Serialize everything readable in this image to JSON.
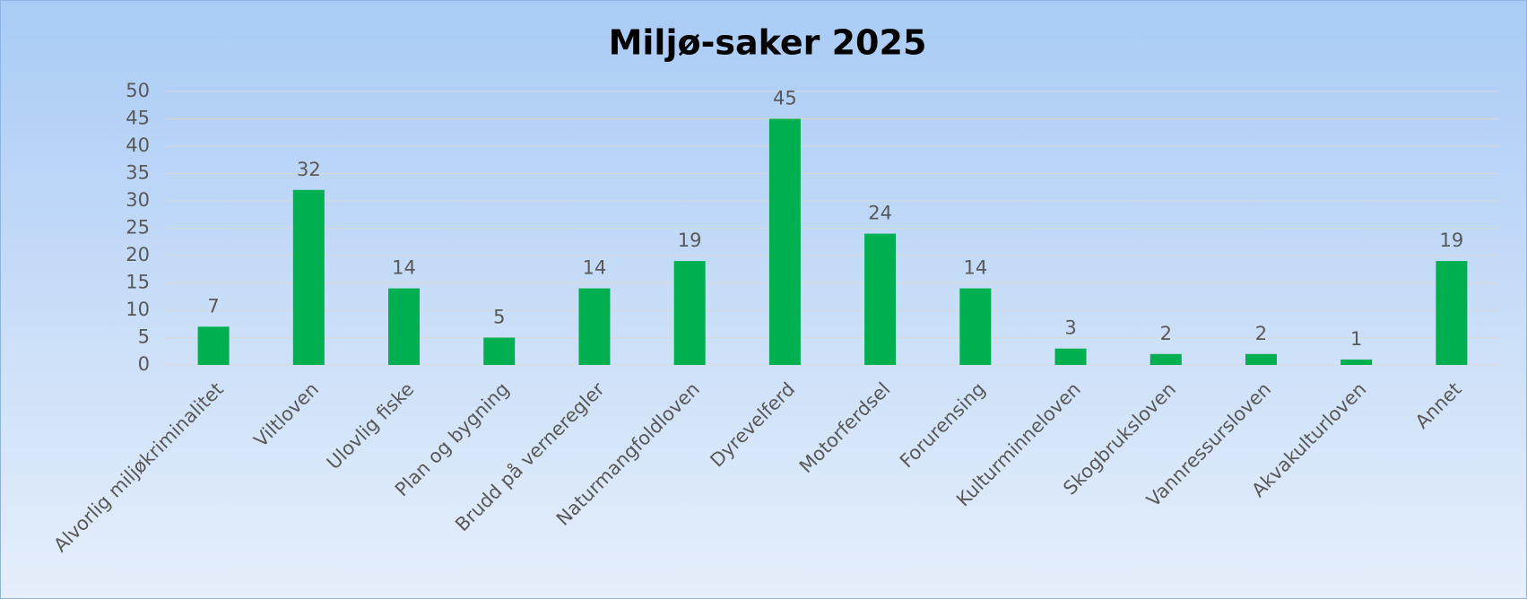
{
  "chart_data": {
    "type": "bar",
    "title": "Miljø-saker 2025",
    "categories": [
      "Alvorlig miljøkriminalitet",
      "Viltloven",
      "Ulovlig fiske",
      "Plan og bygning",
      "Brudd på verneregler",
      "Naturmangfoldloven",
      "Dyrevelferd",
      "Motorferdsel",
      "Forurensing",
      "Kulturminneloven",
      "Skogbruksloven",
      "Vannressursloven",
      "Akvakulturloven",
      "Annet"
    ],
    "values": [
      7,
      32,
      14,
      5,
      14,
      19,
      45,
      24,
      14,
      3,
      2,
      2,
      1,
      19
    ],
    "color": "#00b050",
    "ylim": [
      0,
      50
    ],
    "yticks": [
      0,
      5,
      10,
      15,
      20,
      25,
      30,
      35,
      40,
      45,
      50
    ],
    "grid": true
  }
}
